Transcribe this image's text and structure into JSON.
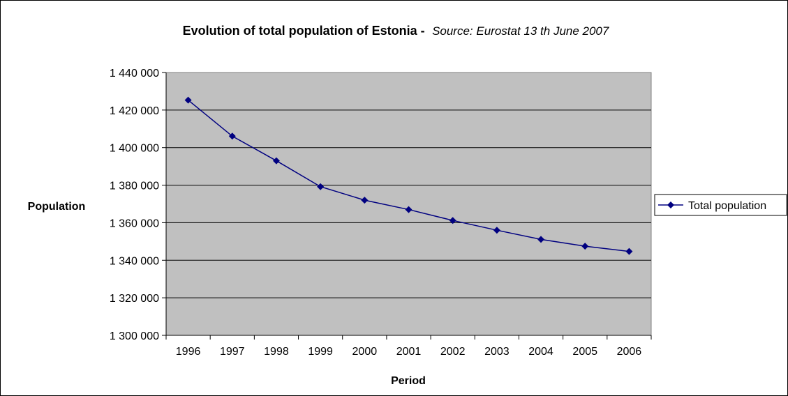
{
  "chart_data": {
    "type": "line",
    "title": "Evolution of total population of Estonia -",
    "subtitle": "Source: Eurostat 13 th June 2007",
    "xlabel": "Period",
    "ylabel": "Population",
    "categories": [
      "1996",
      "1997",
      "1998",
      "1999",
      "2000",
      "2001",
      "2002",
      "2003",
      "2004",
      "2005",
      "2006"
    ],
    "series": [
      {
        "name": "Total population",
        "values": [
          1425300,
          1406100,
          1393000,
          1379200,
          1372000,
          1367000,
          1361200,
          1356000,
          1351100,
          1347500,
          1344700
        ]
      }
    ],
    "ylim": [
      1300000,
      1440000
    ],
    "ytick_labels": [
      "1 300 000",
      "1 320 000",
      "1 340 000",
      "1 360 000",
      "1 380 000",
      "1 400 000",
      "1 420 000",
      "1 440 000"
    ],
    "grid": true,
    "legend_position": "right",
    "colors": {
      "plot_background": "#c0c0c0",
      "series_line": "#000080",
      "gridline": "#000000"
    }
  }
}
